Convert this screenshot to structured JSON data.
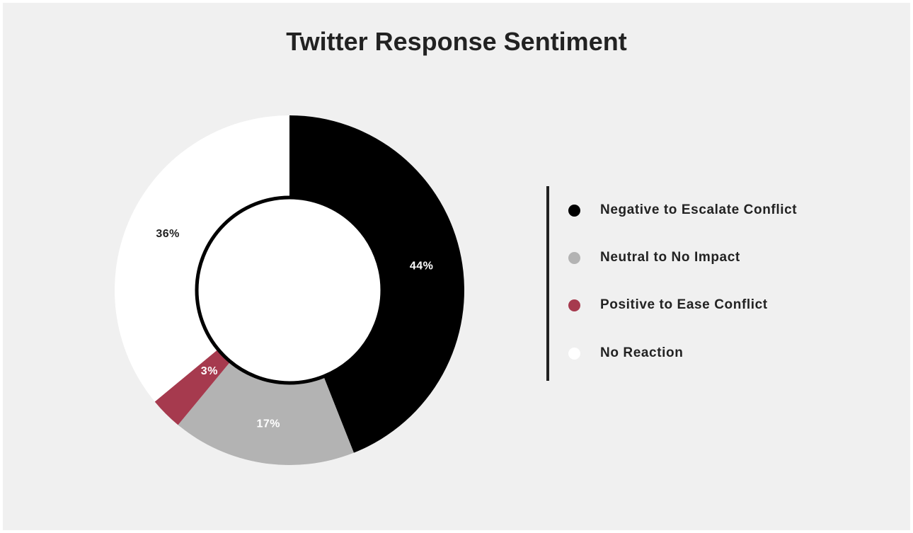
{
  "chart_data": {
    "type": "pie",
    "variant": "donut",
    "title": "Twitter Response Sentiment",
    "slices": [
      {
        "label": "Negative to Escalate Conflict",
        "value": 44,
        "display": "44%",
        "color": "#000000",
        "label_color": "#ffffff"
      },
      {
        "label": "Neutral to No Impact",
        "value": 17,
        "display": "17%",
        "color": "#b3b3b3",
        "label_color": "#ffffff"
      },
      {
        "label": "Positive to Ease Conflict",
        "value": 3,
        "display": "3%",
        "color": "#a63a4e",
        "label_color": "#ffffff"
      },
      {
        "label": "No Reaction",
        "value": 36,
        "display": "36%",
        "color": "#ffffff",
        "label_color": "#222222"
      }
    ],
    "legend_position": "right"
  }
}
